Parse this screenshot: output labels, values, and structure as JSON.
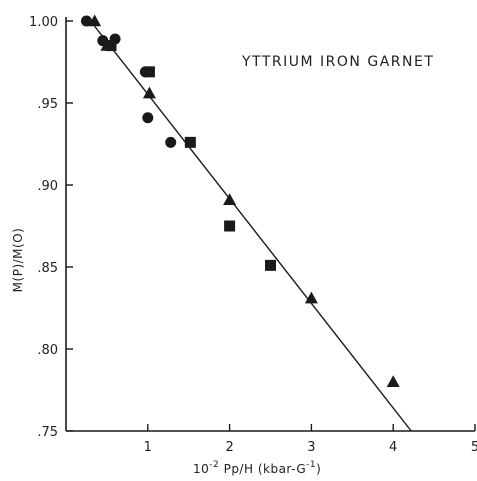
{
  "chart_data": {
    "type": "scatter",
    "title": "YTTRIUM IRON GARNET",
    "xlabel_prefix": "10",
    "xlabel_exp": "-2",
    "xlabel_rest": " Pp/H (kbar-G",
    "xlabel_exp2": "-1",
    "xlabel_end": ")",
    "ylabel": "M(P)/M(O)",
    "xlim": [
      0,
      5
    ],
    "ylim": [
      0.75,
      1.0
    ],
    "x_ticks": [
      1,
      2,
      3,
      4,
      5
    ],
    "x_tick_labels": [
      "1",
      "2",
      "3",
      "4",
      "5"
    ],
    "y_ticks": [
      0.75,
      0.8,
      0.85,
      0.9,
      0.95,
      1.0
    ],
    "y_tick_labels": [
      ".75",
      ".80",
      ".85",
      ".90",
      ".95",
      "1.00"
    ],
    "series": [
      {
        "marker": "circle",
        "x": [
          0.25,
          0.45,
          0.6,
          0.97,
          1.0,
          1.28
        ],
        "y": [
          1.0,
          0.988,
          0.989,
          0.969,
          0.941,
          0.926
        ]
      },
      {
        "marker": "square",
        "x": [
          0.55,
          1.02,
          1.52,
          2.0,
          2.5
        ],
        "y": [
          0.985,
          0.969,
          0.926,
          0.875,
          0.851
        ]
      },
      {
        "marker": "triangle",
        "x": [
          0.35,
          0.5,
          1.02,
          2.0,
          3.0,
          4.0
        ],
        "y": [
          1.0,
          0.985,
          0.956,
          0.891,
          0.831,
          0.78
        ]
      }
    ],
    "fit_line": {
      "x": [
        0.3,
        4.22
      ],
      "y": [
        1.0,
        0.75
      ]
    },
    "grid": false,
    "colors": {
      "ink": "#1a1a1a"
    }
  }
}
